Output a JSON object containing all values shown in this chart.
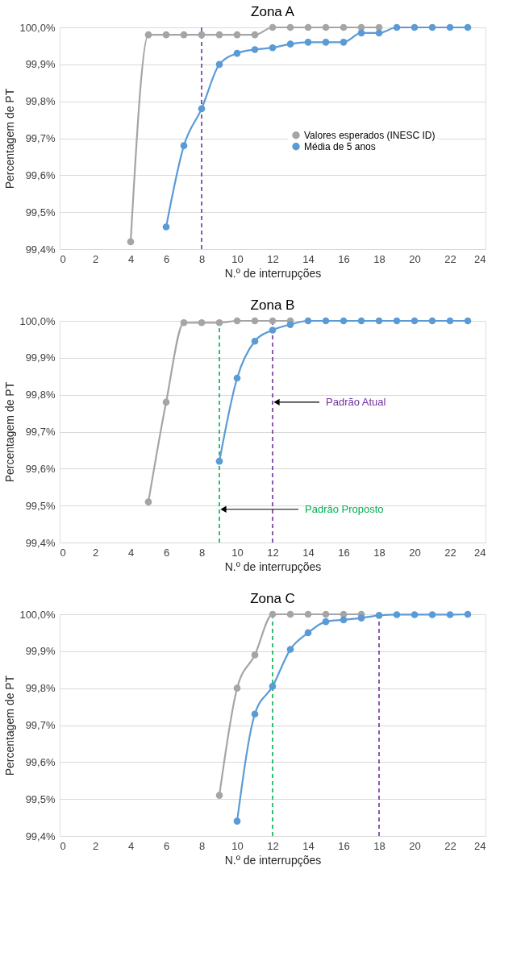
{
  "chart_data": [
    {
      "type": "line",
      "title": "Zona A",
      "xlabel": "N.º de interrupções",
      "ylabel": "Percentagem de PT",
      "xlim": [
        0,
        24
      ],
      "xticks": [
        0,
        2,
        4,
        6,
        8,
        10,
        12,
        14,
        16,
        18,
        20,
        22,
        24
      ],
      "ylim": [
        99.4,
        100.0
      ],
      "yticks": [
        {
          "value": 99.4,
          "label": "99,4%"
        },
        {
          "value": 99.5,
          "label": "99,5%"
        },
        {
          "value": 99.6,
          "label": "99,6%"
        },
        {
          "value": 99.7,
          "label": "99,7%"
        },
        {
          "value": 99.8,
          "label": "99,8%"
        },
        {
          "value": 99.9,
          "label": "99,9%"
        },
        {
          "value": 100.0,
          "label": "100,0%"
        }
      ],
      "grid": "y",
      "legend": "right",
      "marker": "circle",
      "line_style": "solid",
      "series": [
        {
          "name": "Valores esperados (INESC ID)",
          "color": "#a5a5a5",
          "x": [
            4,
            5,
            6,
            7,
            8,
            9,
            10,
            11,
            12,
            13,
            14,
            15,
            16,
            17,
            18
          ],
          "values": [
            99.42,
            99.98,
            99.98,
            99.98,
            99.98,
            99.98,
            99.98,
            99.98,
            100.0,
            100.0,
            100.0,
            100.0,
            100.0,
            100.0,
            100.0
          ]
        },
        {
          "name": "Média de 5 anos",
          "color": "#5b9bd5",
          "x": [
            6,
            7,
            8,
            9,
            10,
            11,
            12,
            13,
            14,
            15,
            16,
            17,
            18,
            19,
            20,
            21,
            22,
            23
          ],
          "values": [
            99.46,
            99.68,
            99.78,
            99.9,
            99.93,
            99.94,
            99.945,
            99.955,
            99.96,
            99.96,
            99.96,
            99.985,
            99.985,
            100.0,
            100.0,
            100.0,
            100.0,
            100.0
          ]
        }
      ],
      "ref_lines": [
        {
          "axis": "x",
          "value": 8,
          "color": "#7030a0",
          "line_style": "dashed"
        }
      ]
    },
    {
      "type": "line",
      "title": "Zona B",
      "xlabel": "N.º de interrupções",
      "ylabel": "Percentagem de PT",
      "xlim": [
        0,
        24
      ],
      "xticks": [
        0,
        2,
        4,
        6,
        8,
        10,
        12,
        14,
        16,
        18,
        20,
        22,
        24
      ],
      "ylim": [
        99.4,
        100.0
      ],
      "yticks": [
        {
          "value": 99.4,
          "label": "99,4%"
        },
        {
          "value": 99.5,
          "label": "99,5%"
        },
        {
          "value": 99.6,
          "label": "99,6%"
        },
        {
          "value": 99.7,
          "label": "99,7%"
        },
        {
          "value": 99.8,
          "label": "99,8%"
        },
        {
          "value": 99.9,
          "label": "99,9%"
        },
        {
          "value": 100.0,
          "label": "100,0%"
        }
      ],
      "grid": "y",
      "marker": "circle",
      "line_style": "solid",
      "series": [
        {
          "color": "#a5a5a5",
          "x": [
            5,
            6,
            7,
            8,
            9,
            10,
            11,
            12,
            13
          ],
          "values": [
            99.51,
            99.78,
            99.995,
            99.995,
            99.995,
            100.0,
            100.0,
            100.0,
            100.0
          ]
        },
        {
          "color": "#5b9bd5",
          "x": [
            9,
            10,
            11,
            12,
            13,
            14,
            15,
            16,
            17,
            18,
            19,
            20,
            21,
            22,
            23
          ],
          "values": [
            99.62,
            99.845,
            99.945,
            99.975,
            99.99,
            100.0,
            100.0,
            100.0,
            100.0,
            100.0,
            100.0,
            100.0,
            100.0,
            100.0,
            100.0
          ]
        }
      ],
      "ref_lines": [
        {
          "axis": "x",
          "value": 9,
          "color": "#00b050",
          "line_style": "dashed"
        },
        {
          "axis": "x",
          "value": 12,
          "color": "#7030a0",
          "line_style": "dashed"
        }
      ],
      "annotations": [
        {
          "text": "Padrão Atual",
          "x": 12,
          "y": 99.78
        },
        {
          "text": "Padrão Proposto",
          "x": 9,
          "y": 99.49
        }
      ]
    },
    {
      "type": "line",
      "title": "Zona C",
      "xlabel": "N.º de interrupções",
      "ylabel": "Percentagem de PT",
      "xlim": [
        0,
        24
      ],
      "xticks": [
        0,
        2,
        4,
        6,
        8,
        10,
        12,
        14,
        16,
        18,
        20,
        22,
        24
      ],
      "ylim": [
        99.4,
        100.0
      ],
      "yticks": [
        {
          "value": 99.4,
          "label": "99,4%"
        },
        {
          "value": 99.5,
          "label": "99,5%"
        },
        {
          "value": 99.6,
          "label": "99,6%"
        },
        {
          "value": 99.7,
          "label": "99,7%"
        },
        {
          "value": 99.8,
          "label": "99,8%"
        },
        {
          "value": 99.9,
          "label": "99,9%"
        },
        {
          "value": 100.0,
          "label": "100,0%"
        }
      ],
      "grid": "y",
      "marker": "circle",
      "line_style": "solid",
      "series": [
        {
          "color": "#a5a5a5",
          "x": [
            9,
            10,
            11,
            12,
            13,
            14,
            15,
            16,
            17
          ],
          "values": [
            99.51,
            99.8,
            99.89,
            100.0,
            100.0,
            100.0,
            100.0,
            100.0,
            100.0
          ]
        },
        {
          "color": "#5b9bd5",
          "x": [
            10,
            11,
            12,
            13,
            14,
            15,
            16,
            17,
            18,
            19,
            20,
            21,
            22,
            23
          ],
          "values": [
            99.44,
            99.73,
            99.805,
            99.905,
            99.95,
            99.98,
            99.985,
            99.99,
            99.997,
            99.999,
            99.999,
            99.999,
            99.999,
            100.0
          ]
        }
      ],
      "ref_lines": [
        {
          "axis": "x",
          "value": 12,
          "color": "#00b050",
          "line_style": "dashed"
        },
        {
          "axis": "x",
          "value": 18,
          "color": "#7030a0",
          "line_style": "dashed"
        }
      ]
    }
  ]
}
